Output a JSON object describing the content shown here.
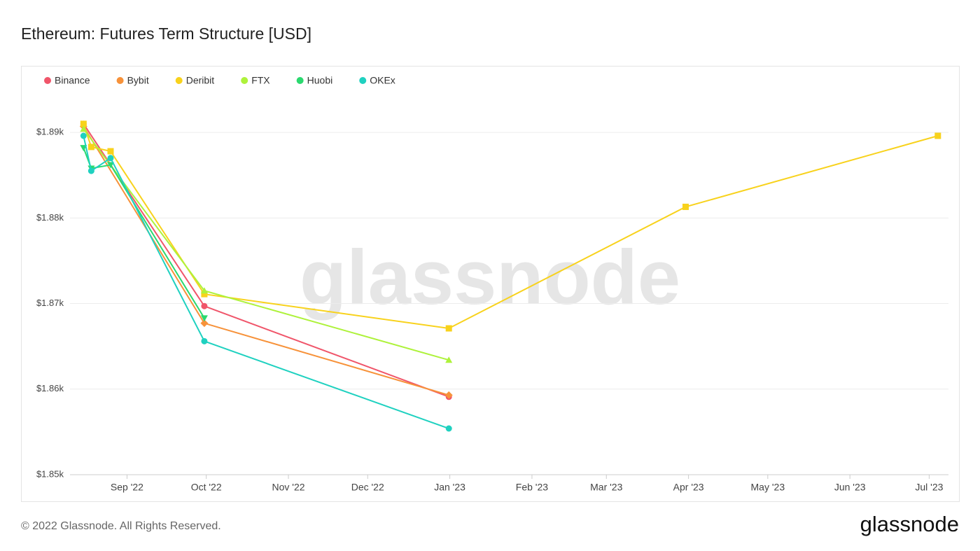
{
  "chart_data": {
    "type": "line",
    "title": "Ethereum: Futures Term Structure [USD]",
    "watermark": "glassnode",
    "xlim": [
      2022.607,
      2023.516
    ],
    "xticks": [
      {
        "value": 2022.666,
        "label": "Sep '22"
      },
      {
        "value": 2022.748,
        "label": "Oct '22"
      },
      {
        "value": 2022.833,
        "label": "Nov '22"
      },
      {
        "value": 2022.915,
        "label": "Dec '22"
      },
      {
        "value": 2023.0,
        "label": "Jan '23"
      },
      {
        "value": 2023.085,
        "label": "Feb '23"
      },
      {
        "value": 2023.162,
        "label": "Mar '23"
      },
      {
        "value": 2023.247,
        "label": "Apr '23"
      },
      {
        "value": 2023.329,
        "label": "May '23"
      },
      {
        "value": 2023.414,
        "label": "Jun '23"
      },
      {
        "value": 2023.496,
        "label": "Jul '23"
      }
    ],
    "ylim": [
      1850,
      1895
    ],
    "yticks": [
      {
        "value": 1850,
        "label": "$1.85k"
      },
      {
        "value": 1860,
        "label": "$1.86k"
      },
      {
        "value": 1870,
        "label": "$1.87k"
      },
      {
        "value": 1880,
        "label": "$1.88k"
      },
      {
        "value": 1890,
        "label": "$1.89k"
      }
    ],
    "grid": true,
    "legend": "top-left",
    "series": [
      {
        "name": "Binance",
        "color": "#f0556a",
        "marker": "circle",
        "x": [
          2022.621,
          2022.746,
          2022.999
        ],
        "values": [
          1891.0,
          1869.7,
          1859.1
        ]
      },
      {
        "name": "Bybit",
        "color": "#f7923a",
        "marker": "diamond",
        "x": [
          2022.621,
          2022.746,
          2022.999
        ],
        "values": [
          1890.7,
          1867.7,
          1859.3
        ]
      },
      {
        "name": "Deribit",
        "color": "#f8d21c",
        "marker": "square",
        "x": [
          2022.621,
          2022.629,
          2022.649,
          2022.746,
          2022.999,
          2023.244,
          2023.505
        ],
        "values": [
          1891.0,
          1888.3,
          1887.8,
          1871.1,
          1867.1,
          1881.3,
          1889.6
        ]
      },
      {
        "name": "FTX",
        "color": "#aef23b",
        "marker": "triangle-up",
        "x": [
          2022.621,
          2022.746,
          2022.999
        ],
        "values": [
          1890.4,
          1871.5,
          1863.4
        ]
      },
      {
        "name": "Huobi",
        "color": "#2bd96f",
        "marker": "triangle-down",
        "x": [
          2022.621,
          2022.629,
          2022.649,
          2022.746
        ],
        "values": [
          1888.2,
          1885.8,
          1886.2,
          1868.3
        ]
      },
      {
        "name": "OKEx",
        "color": "#1fd1c0",
        "marker": "circle",
        "x": [
          2022.621,
          2022.629,
          2022.649,
          2022.746,
          2022.999
        ],
        "values": [
          1889.6,
          1885.5,
          1887.0,
          1865.6,
          1855.4
        ]
      }
    ]
  },
  "footer": {
    "copyright": "© 2022 Glassnode. All Rights Reserved.",
    "logo": "glassnode"
  }
}
